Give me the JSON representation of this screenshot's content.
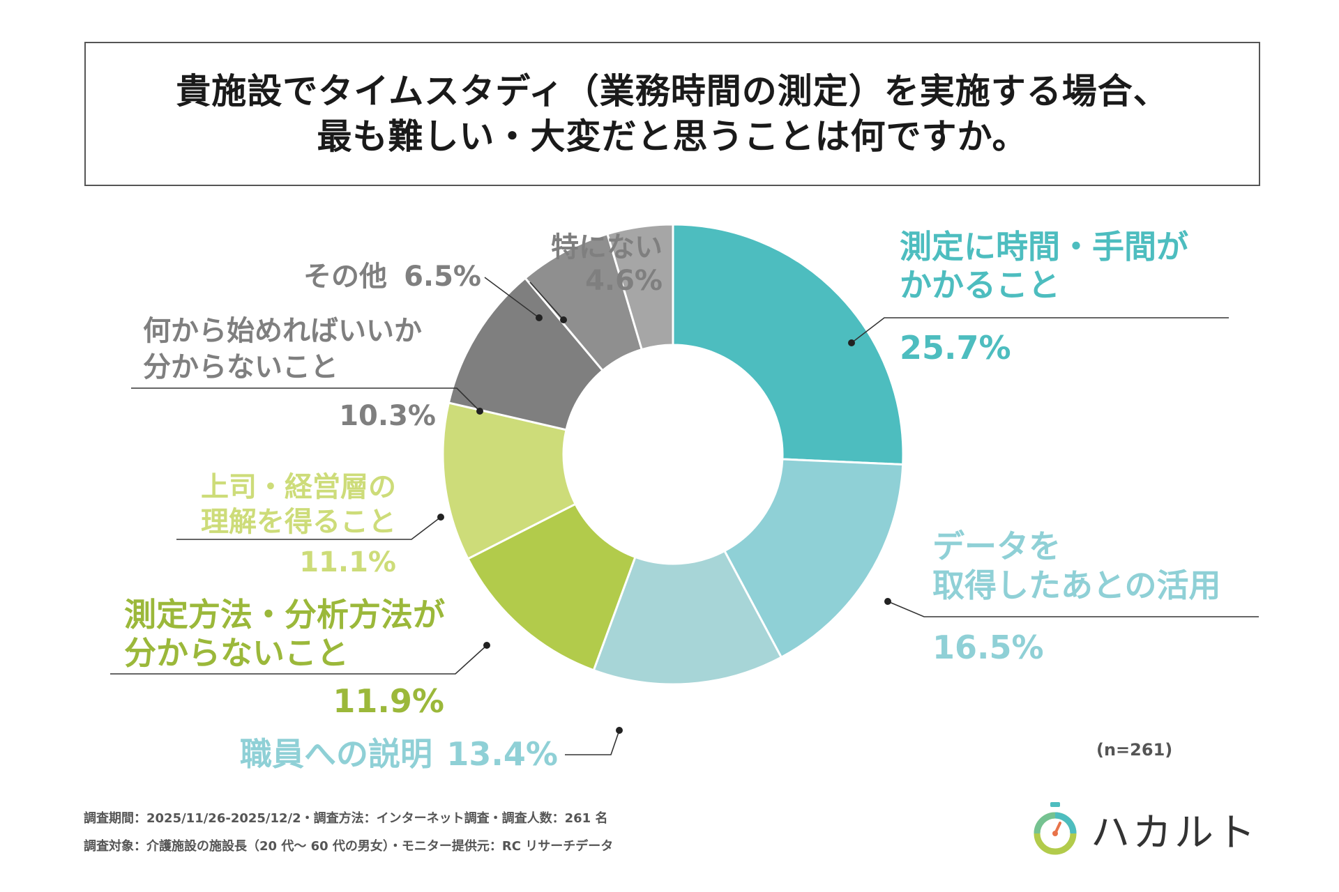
{
  "title": {
    "line1": "貴施設でタイムスタディ（業務時間の測定）を実施する場合、",
    "line2": "最も難しい・大変だと思うことは何ですか。"
  },
  "chart_data": {
    "type": "pie",
    "subtype": "donut",
    "slices": [
      {
        "label_lines": [
          "測定に時間・手間が",
          "かかること"
        ],
        "value": 25.7,
        "value_text": "25.7%",
        "color": "#4dbdbf"
      },
      {
        "label_lines": [
          "データを",
          "取得したあとの活用"
        ],
        "value": 16.5,
        "value_text": "16.5%",
        "color": "#8fd0d6"
      },
      {
        "label_lines": [
          "職員への説明"
        ],
        "value": 13.4,
        "value_text": "13.4%",
        "color": "#a7d5d7"
      },
      {
        "label_lines": [
          "測定方法・分析方法が",
          "分からないこと"
        ],
        "value": 11.9,
        "value_text": "11.9%",
        "color": "#b2cb4b"
      },
      {
        "label_lines": [
          "上司・経営層の",
          "理解を得ること"
        ],
        "value": 11.1,
        "value_text": "11.1%",
        "color": "#cddc79"
      },
      {
        "label_lines": [
          "何から始めればいいか",
          "分からないこと"
        ],
        "value": 10.3,
        "value_text": "10.3%",
        "color": "#7f7f7f"
      },
      {
        "label_lines": [
          "その他"
        ],
        "value": 6.5,
        "value_text": "6.5%",
        "color": "#8f8f8f"
      },
      {
        "label_lines": [
          "特にない"
        ],
        "value": 4.6,
        "value_text": "4.6%",
        "color": "#a6a6a6"
      }
    ],
    "label_colors": [
      "#4dbdbf",
      "#8fd0d6",
      "#8fd0d6",
      "#9bb83a",
      "#cddc79",
      "#7f7f7f",
      "#7f7f7f",
      "#7f7f7f"
    ]
  },
  "n_note": "(n=261)",
  "footnotes": {
    "line1": "調査期間：2025/11/26-2025/12/2・調査方法：インターネット調査・調査人数：261 名",
    "line2": "調査対象：介護施設の施設長（20 代〜 60 代の男女）・モニター提供元：RC リサーチデータ"
  },
  "logo": {
    "text": "ハカルト",
    "ring_colors": [
      "#4dbdbf",
      "#b2cb4b",
      "#e8734a"
    ]
  }
}
